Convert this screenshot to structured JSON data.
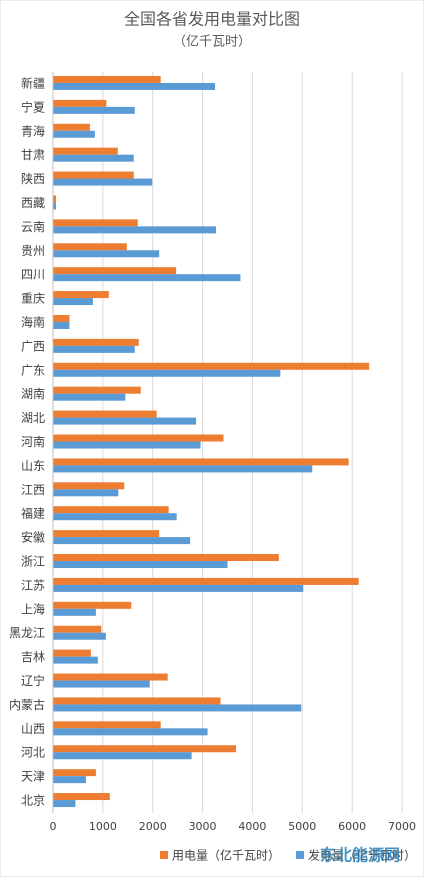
{
  "chart_data": {
    "type": "hbar",
    "title": "全国各省发用电量对比图",
    "subtitle": "（亿千瓦时）",
    "categories": [
      "新疆",
      "宁夏",
      "青海",
      "甘肃",
      "陕西",
      "西藏",
      "云南",
      "贵州",
      "四川",
      "重庆",
      "海南",
      "广西",
      "广东",
      "湖南",
      "湖北",
      "河南",
      "山东",
      "江西",
      "福建",
      "安徽",
      "浙江",
      "江苏",
      "上海",
      "黑龙江",
      "吉林",
      "辽宁",
      "内蒙古",
      "山西",
      "河北",
      "天津",
      "北京"
    ],
    "series": [
      {
        "name": "用电量（亿千瓦时）",
        "color": "#ed7d31",
        "values": [
          2160,
          1070,
          740,
          1300,
          1620,
          60,
          1700,
          1480,
          2470,
          1120,
          330,
          1720,
          6340,
          1760,
          2080,
          3420,
          5930,
          1430,
          2320,
          2130,
          4530,
          6130,
          1570,
          970,
          760,
          2300,
          3360,
          2160,
          3670,
          860,
          1140
        ]
      },
      {
        "name": "发电量（亿千瓦时）",
        "color": "#5b9bd5",
        "values": [
          3250,
          1640,
          840,
          1620,
          1990,
          60,
          3270,
          2130,
          3760,
          800,
          330,
          1640,
          4560,
          1450,
          2870,
          2960,
          5200,
          1310,
          2480,
          2750,
          3500,
          5020,
          860,
          1060,
          900,
          1940,
          4980,
          3100,
          2780,
          660,
          450
        ]
      }
    ],
    "xlim": [
      0,
      7000
    ],
    "xticks": [
      0,
      1000,
      2000,
      3000,
      4000,
      5000,
      6000,
      7000
    ],
    "grid": true,
    "watermark": "东北能源网"
  }
}
